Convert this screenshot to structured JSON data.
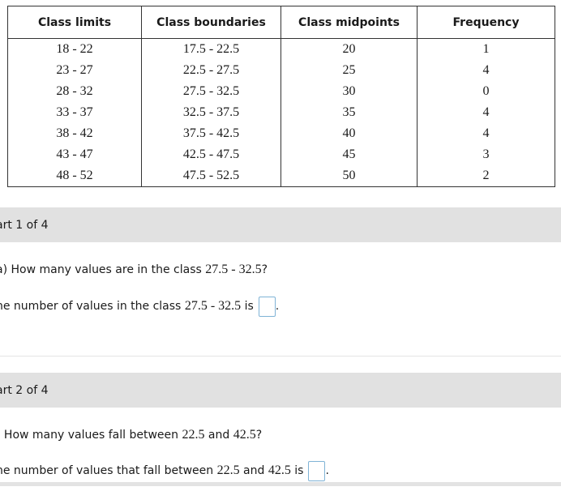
{
  "table": {
    "headers": [
      "Class limits",
      "Class boundaries",
      "Class midpoints",
      "Frequency"
    ],
    "rows": [
      [
        "18 - 22",
        "17.5 - 22.5",
        "20",
        "1"
      ],
      [
        "23 - 27",
        "22.5 - 27.5",
        "25",
        "4"
      ],
      [
        "28 - 32",
        "27.5 - 32.5",
        "30",
        "0"
      ],
      [
        "33 - 37",
        "32.5 - 37.5",
        "35",
        "4"
      ],
      [
        "38 - 42",
        "37.5 - 42.5",
        "40",
        "4"
      ],
      [
        "43 - 47",
        "42.5 - 47.5",
        "45",
        "3"
      ],
      [
        "48 - 52",
        "47.5 - 52.5",
        "50",
        "2"
      ]
    ]
  },
  "parts": [
    {
      "label": "art 1 of 4",
      "question_prefix": "a) How many values are in the class ",
      "question_value": "27.5 - 32.5",
      "question_suffix": "?",
      "answer_prefix": "he number of values in the class ",
      "answer_value": "27.5 - 32.5",
      "answer_suffix": " is",
      "answer_end": "."
    },
    {
      "label": "art 2 of 4",
      "question_prefix": ") How many values fall between ",
      "question_value_1": "22.5",
      "question_mid": " and ",
      "question_value_2": "42.5",
      "question_suffix": "?",
      "answer_prefix": "he number of values that fall between ",
      "answer_value_1": "22.5",
      "answer_mid": " and ",
      "answer_value_2": "42.5",
      "answer_suffix": " is",
      "answer_end": "."
    }
  ]
}
